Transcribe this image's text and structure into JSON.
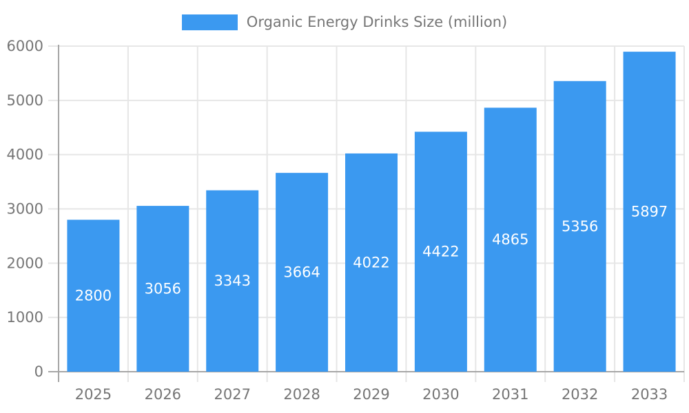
{
  "legend": {
    "label": "Organic Energy Drinks Size (million)",
    "swatch_color": "#3b99f0"
  },
  "chart_data": {
    "type": "bar",
    "title": "",
    "series_name": "Organic Energy Drinks Size (million)",
    "categories": [
      "2025",
      "2026",
      "2027",
      "2028",
      "2029",
      "2030",
      "2031",
      "2032",
      "2033"
    ],
    "values": [
      2800,
      3056,
      3343,
      3664,
      4022,
      4422,
      4865,
      5356,
      5897
    ],
    "xlabel": "",
    "ylabel": "",
    "ylim": [
      0,
      6000
    ],
    "ytick_interval": 1000,
    "ytick_labels": [
      "0",
      "1000",
      "2000",
      "3000",
      "4000",
      "5000",
      "6000"
    ],
    "grid": true,
    "legend_position": "top-center",
    "value_labels_position": "center-inside",
    "colors": {
      "bar": "#3b99f0",
      "value_label": "#ffffff",
      "axis_text": "#757575",
      "grid_line": "#e6e6e6",
      "axis_line": "#a6a6a6"
    }
  }
}
